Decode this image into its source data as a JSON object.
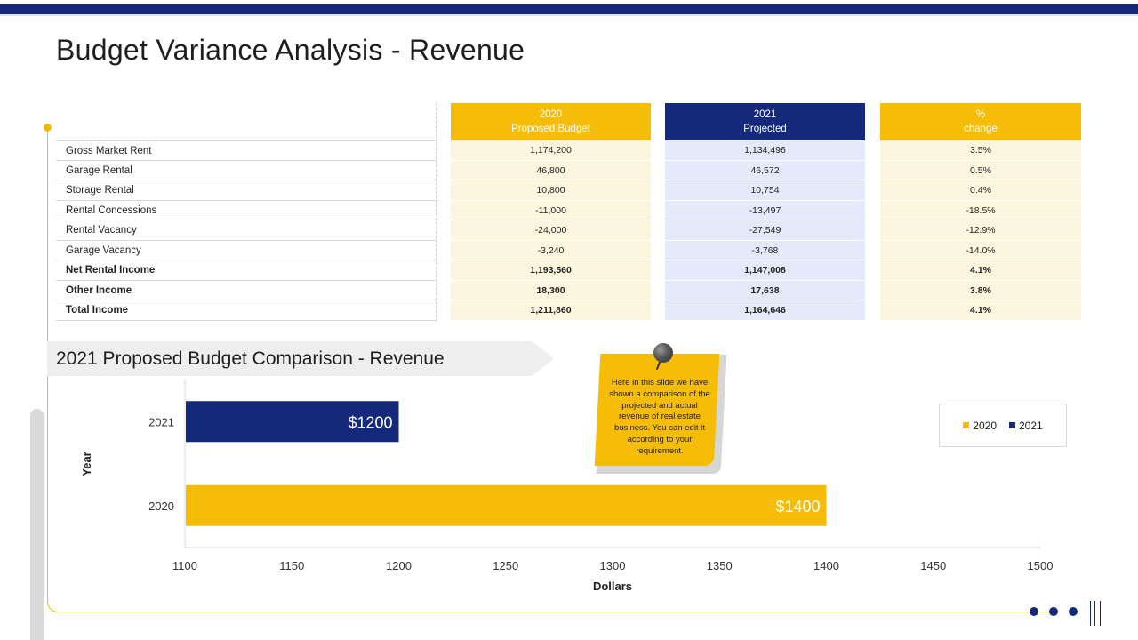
{
  "title": "Budget Variance Analysis - Revenue",
  "table": {
    "rows": [
      {
        "label": "Gross Market Rent",
        "bold": false,
        "budget_2020": "1,174,200",
        "projected_2021": "1,134,496",
        "change": "3.5%"
      },
      {
        "label": "Garage Rental",
        "bold": false,
        "budget_2020": "46,800",
        "projected_2021": "46,572",
        "change": "0.5%"
      },
      {
        "label": "Storage Rental",
        "bold": false,
        "budget_2020": "10,800",
        "projected_2021": "10,754",
        "change": "0.4%"
      },
      {
        "label": "Rental Concessions",
        "bold": false,
        "budget_2020": "-11,000",
        "projected_2021": "-13,497",
        "change": "-18.5%"
      },
      {
        "label": "Rental Vacancy",
        "bold": false,
        "budget_2020": "-24,000",
        "projected_2021": "-27,549",
        "change": "-12.9%"
      },
      {
        "label": "Garage Vacancy",
        "bold": false,
        "budget_2020": "-3,240",
        "projected_2021": "-3,768",
        "change": "-14.0%"
      },
      {
        "label": "Net Rental Income",
        "bold": true,
        "budget_2020": "1,193,560",
        "projected_2021": "1,147,008",
        "change": "4.1%"
      },
      {
        "label": "Other Income",
        "bold": true,
        "budget_2020": "18,300",
        "projected_2021": "17,638",
        "change": "3.8%"
      },
      {
        "label": "Total Income",
        "bold": true,
        "budget_2020": "1,211,860",
        "projected_2021": "1,164,646",
        "change": "4.1%"
      }
    ],
    "headers": {
      "col1_line1": "2020",
      "col1_line2": "Proposed Budget",
      "col2_line1": "2021",
      "col2_line2": "Projected",
      "col3_line1": "%",
      "col3_line2": "change"
    }
  },
  "section_title": "2021 Proposed Budget Comparison - Revenue",
  "note_text": "Here in this slide we have shown a comparison of the projected  and actual revenue of real estate business. You can edit it according to your requirement.",
  "colors": {
    "yellow": "#f5bd08",
    "navy": "#14297a"
  },
  "chart_data": {
    "type": "bar",
    "orientation": "horizontal",
    "categories": [
      "2021",
      "2020"
    ],
    "series": [
      {
        "name": "2021",
        "values": [
          1200,
          null
        ],
        "color": "#14297a"
      },
      {
        "name": "2020",
        "values": [
          null,
          1400
        ],
        "color": "#f5bd08"
      }
    ],
    "data_labels": [
      "$1200",
      "$1400"
    ],
    "xlabel": "Dollars",
    "ylabel": "Year",
    "xlim": [
      1100,
      1500
    ],
    "x_ticks": [
      1100,
      1150,
      1200,
      1250,
      1300,
      1350,
      1400,
      1450,
      1500
    ],
    "legend": [
      "2020",
      "2021"
    ],
    "legend_position": "right",
    "grid": false
  }
}
